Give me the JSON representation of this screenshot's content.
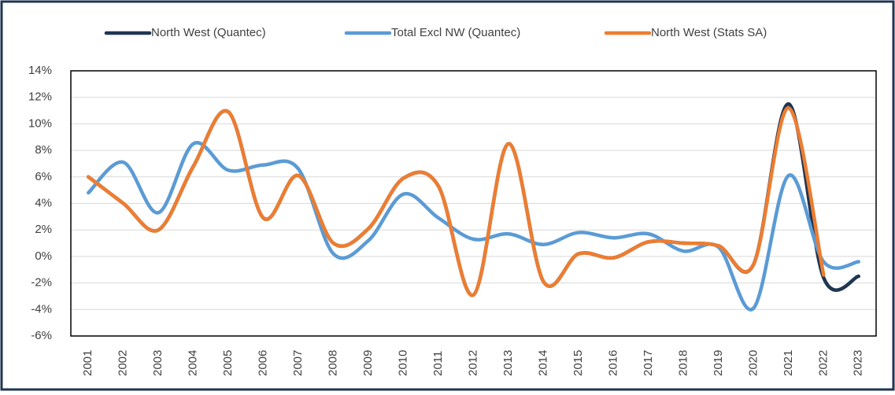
{
  "chart_data": {
    "type": "line",
    "categories": [
      "2001",
      "2002",
      "2003",
      "2004",
      "2005",
      "2006",
      "2007",
      "2008",
      "2009",
      "2010",
      "2011",
      "2012",
      "2013",
      "2014",
      "2015",
      "2016",
      "2017",
      "2018",
      "2019",
      "2020",
      "2021",
      "2022",
      "2023"
    ],
    "series": [
      {
        "name": "North West (Quantec)",
        "color": "#1f3552",
        "values": [
          6.0,
          4.0,
          2.0,
          6.8,
          10.9,
          2.9,
          6.1,
          1.0,
          2.1,
          5.9,
          5.3,
          -2.9,
          8.5,
          -1.9,
          0.2,
          -0.1,
          1.1,
          1.0,
          0.8,
          -0.6,
          11.5,
          -1.6,
          -1.5
        ]
      },
      {
        "name": "Total Excl NW (Quantec)",
        "color": "#5b9bd5",
        "values": [
          4.8,
          7.1,
          3.3,
          8.5,
          6.5,
          6.9,
          6.6,
          0.2,
          1.2,
          4.7,
          2.9,
          1.3,
          1.7,
          0.9,
          1.8,
          1.4,
          1.7,
          0.4,
          0.7,
          -3.9,
          6.1,
          -0.4,
          -0.4
        ]
      },
      {
        "name": "North West (Stats SA)",
        "color": "#ed7d31",
        "values": [
          6.0,
          4.0,
          2.0,
          6.8,
          10.9,
          2.9,
          6.1,
          1.0,
          2.1,
          5.9,
          5.3,
          -2.9,
          8.5,
          -1.9,
          0.2,
          -0.1,
          1.1,
          1.0,
          0.8,
          -0.6,
          11.2,
          -1.4,
          null
        ]
      }
    ],
    "ylim": [
      -6,
      14
    ],
    "yticks": [
      {
        "value": -6,
        "label": "-6%"
      },
      {
        "value": -4,
        "label": "-4%"
      },
      {
        "value": -2,
        "label": "-2%"
      },
      {
        "value": 0,
        "label": "0%"
      },
      {
        "value": 2,
        "label": "2%"
      },
      {
        "value": 4,
        "label": "4%"
      },
      {
        "value": 6,
        "label": "6%"
      },
      {
        "value": 8,
        "label": "8%"
      },
      {
        "value": 10,
        "label": "10%"
      },
      {
        "value": 12,
        "label": "12%"
      },
      {
        "value": 14,
        "label": "14%"
      }
    ],
    "grid": true,
    "legend": "top"
  }
}
